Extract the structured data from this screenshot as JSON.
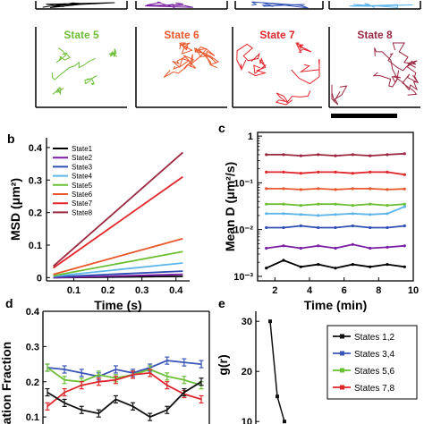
{
  "colors": {
    "State1": "#000000",
    "State2": "#7a1fa2",
    "State3": "#2f4fb3",
    "State4": "#5cb6ea",
    "State5": "#6cbf35",
    "State6": "#e8582a",
    "State7": "#e0262b",
    "State8": "#9b2740",
    "pair12": "#111111",
    "pair34": "#3a55b8",
    "pair56": "#6cbf35",
    "pair78": "#e0262b"
  },
  "panel_a": {
    "top_tiles": [
      {
        "color": "#000000"
      },
      {
        "color": "#7a1fa2"
      },
      {
        "color": "#2f4fb3"
      },
      {
        "color": "#5cb6ea"
      }
    ],
    "tiles": [
      {
        "label": "State 5",
        "color": "#6cbf35"
      },
      {
        "label": "State 6",
        "color": "#e8582a"
      },
      {
        "label": "State 7",
        "color": "#e0262b"
      },
      {
        "label": "State 8",
        "color": "#9b2740"
      }
    ]
  },
  "chart_data": [
    {
      "panel": "b",
      "type": "line",
      "xlabel": "Time (s)",
      "ylabel": "MSD (μm²)",
      "xlim": [
        0.02,
        0.44
      ],
      "ylim": [
        -0.01,
        0.43
      ],
      "xticks": [
        "0.1",
        "0.2",
        "0.3",
        "0.4"
      ],
      "yticks": [
        "0",
        "0.1",
        "0.2",
        "0.3",
        "0.4"
      ],
      "legend_position": "top-left",
      "x": [
        0.04,
        0.42
      ],
      "series": [
        {
          "name": "State1",
          "values": [
            0.0,
            0.004
          ]
        },
        {
          "name": "State2",
          "values": [
            0.0,
            0.01
          ]
        },
        {
          "name": "State3",
          "values": [
            0.002,
            0.02
          ]
        },
        {
          "name": "State4",
          "values": [
            0.004,
            0.045
          ]
        },
        {
          "name": "State5",
          "values": [
            0.006,
            0.08
          ]
        },
        {
          "name": "State6",
          "values": [
            0.01,
            0.12
          ]
        },
        {
          "name": "State7",
          "values": [
            0.03,
            0.31
          ]
        },
        {
          "name": "State8",
          "values": [
            0.035,
            0.385
          ]
        }
      ]
    },
    {
      "panel": "c",
      "type": "line",
      "xlabel": "Time (min)",
      "ylabel": "Mean D (μm²/s)",
      "yscale": "log",
      "xlim": [
        1,
        10
      ],
      "ylim": [
        0.0008,
        1.2
      ],
      "xticks": [
        "2",
        "4",
        "6",
        "8",
        "10"
      ],
      "yticks": [
        "10⁻³",
        "10⁻²",
        "10⁻¹",
        "1"
      ],
      "x": [
        1.5,
        2.5,
        3.5,
        4.5,
        5.5,
        6.5,
        7.5,
        8.5,
        9.5
      ],
      "series": [
        {
          "name": "State8",
          "values": [
            0.4,
            0.4,
            0.38,
            0.4,
            0.38,
            0.4,
            0.38,
            0.4,
            0.42
          ]
        },
        {
          "name": "State7",
          "values": [
            0.17,
            0.17,
            0.16,
            0.17,
            0.17,
            0.16,
            0.17,
            0.17,
            0.15
          ]
        },
        {
          "name": "State6",
          "values": [
            0.075,
            0.075,
            0.072,
            0.075,
            0.072,
            0.075,
            0.075,
            0.072,
            0.074
          ]
        },
        {
          "name": "State5",
          "values": [
            0.035,
            0.035,
            0.033,
            0.035,
            0.035,
            0.033,
            0.035,
            0.033,
            0.035
          ]
        },
        {
          "name": "State4",
          "values": [
            0.022,
            0.022,
            0.021,
            0.02,
            0.021,
            0.022,
            0.021,
            0.022,
            0.031
          ]
        },
        {
          "name": "State3",
          "values": [
            0.011,
            0.011,
            0.012,
            0.011,
            0.011,
            0.012,
            0.011,
            0.011,
            0.012
          ]
        },
        {
          "name": "State2",
          "values": [
            0.004,
            0.0045,
            0.004,
            0.0045,
            0.004,
            0.0048,
            0.004,
            0.0042,
            0.0045
          ]
        },
        {
          "name": "State1",
          "values": [
            0.0015,
            0.0022,
            0.0016,
            0.0018,
            0.0015,
            0.0018,
            0.0016,
            0.0018,
            0.0016
          ]
        }
      ]
    },
    {
      "panel": "d",
      "type": "line",
      "ylabel": "lation Fraction",
      "ylim": [
        0.08,
        0.4
      ],
      "yticks": [
        "0.4",
        "0.3",
        "0.2",
        "0.1"
      ],
      "x": [
        1,
        2,
        3,
        4,
        5,
        6,
        7,
        8,
        9,
        10
      ],
      "series": [
        {
          "name": "States 3,4",
          "values": [
            0.24,
            0.235,
            0.225,
            0.215,
            0.235,
            0.225,
            0.24,
            0.26,
            0.255,
            0.25
          ]
        },
        {
          "name": "States 5,6",
          "values": [
            0.24,
            0.205,
            0.2,
            0.22,
            0.21,
            0.22,
            0.235,
            0.215,
            0.205,
            0.19
          ]
        },
        {
          "name": "States 7,8",
          "values": [
            0.13,
            0.17,
            0.19,
            0.2,
            0.205,
            0.22,
            0.225,
            0.19,
            0.165,
            0.15
          ]
        },
        {
          "name": "States 1,2",
          "values": [
            0.17,
            0.14,
            0.12,
            0.11,
            0.15,
            0.13,
            0.1,
            0.12,
            0.17,
            0.2
          ]
        }
      ]
    },
    {
      "panel": "e",
      "type": "line",
      "ylabel": "g(r)",
      "ylim": [
        9.5,
        32
      ],
      "yticks": [
        "30",
        "20",
        "10"
      ],
      "legend_position": "top-right",
      "legend": [
        "States 1,2",
        "States 3,4",
        "States 5,6",
        "States 7,8"
      ],
      "x": [
        1,
        2,
        3
      ],
      "series": [
        {
          "name": "States 1,2",
          "values": [
            30,
            15,
            10
          ]
        }
      ]
    }
  ],
  "panel_letters": {
    "b": "b",
    "c": "c",
    "d": "d",
    "e": "e"
  }
}
